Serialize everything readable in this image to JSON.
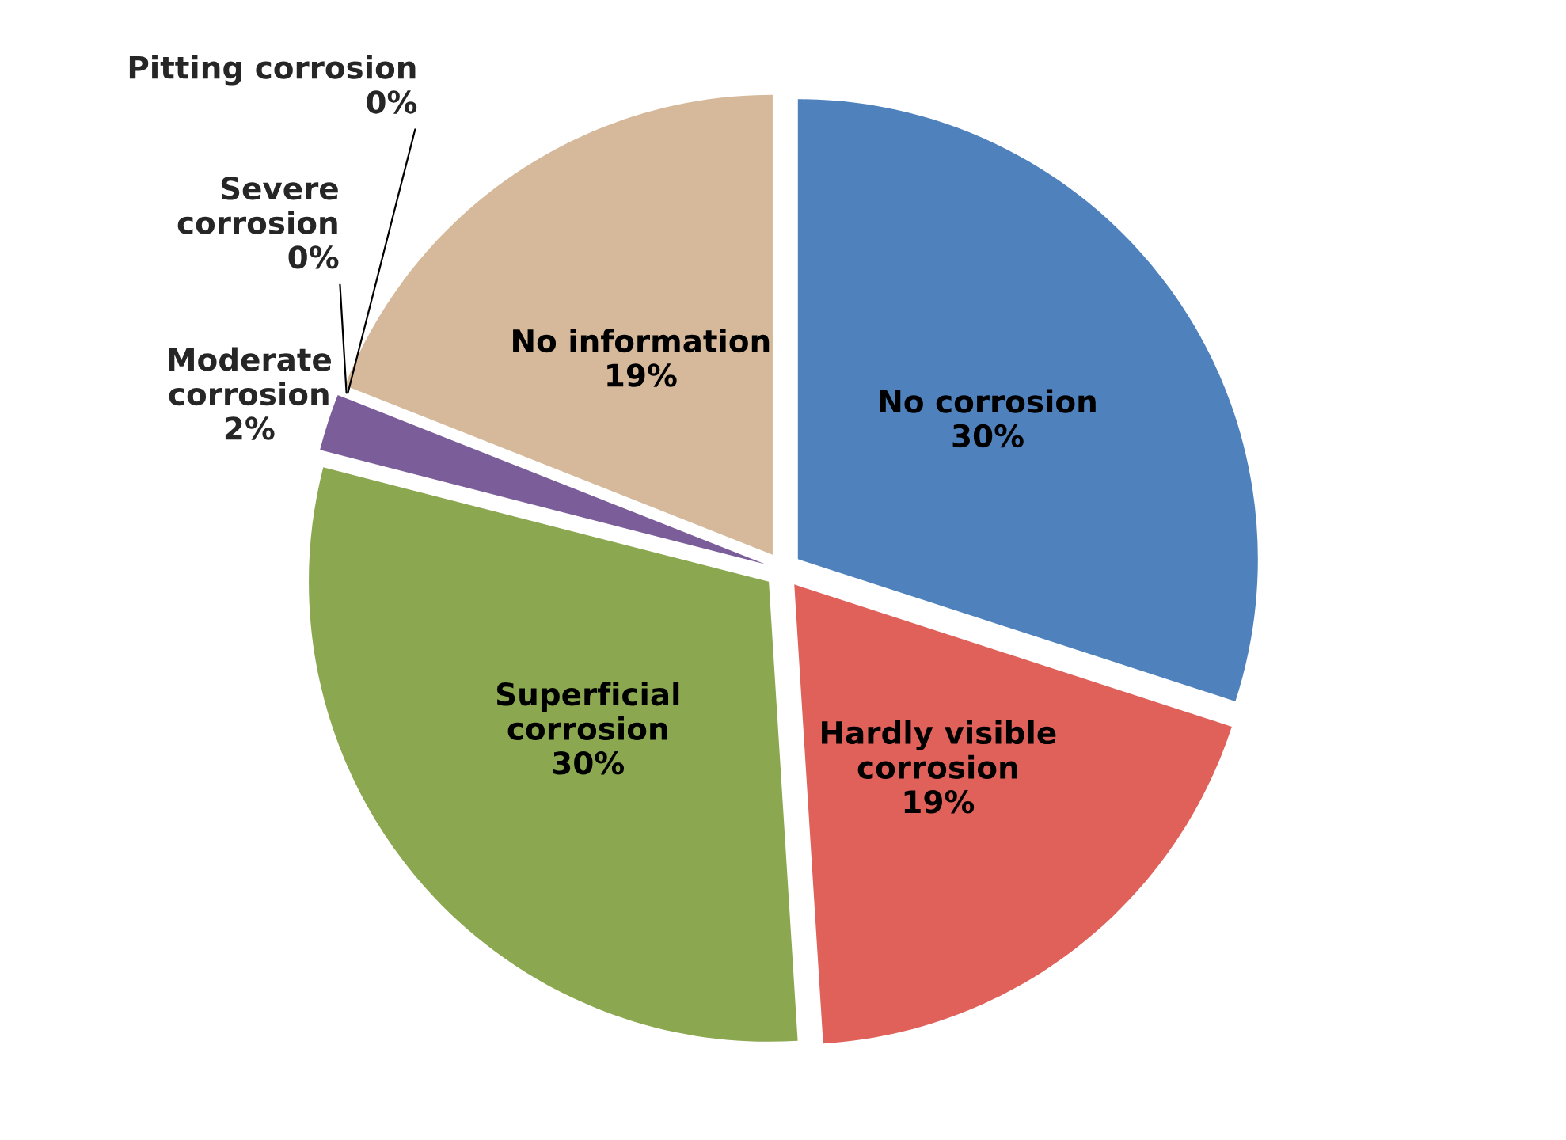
{
  "chart_data": {
    "type": "pie",
    "categories": [
      "No corrosion",
      "Hardly visible\ncorrosion",
      "Superficial\ncorrosion",
      "Moderate\ncorrosion",
      "Severe\ncorrosion",
      "Pitting corrosion",
      "No information"
    ],
    "values": [
      30,
      19,
      30,
      2,
      0,
      0,
      19
    ],
    "value_labels": [
      "30%",
      "19%",
      "30%",
      "2%",
      "0%",
      "0%",
      "19%"
    ],
    "colors": [
      "#4f81bd",
      "#e0605a",
      "#8ba74f",
      "#7b5e99",
      "#4bacc6",
      "#f79646",
      "#d5b99a"
    ],
    "legend": false
  }
}
